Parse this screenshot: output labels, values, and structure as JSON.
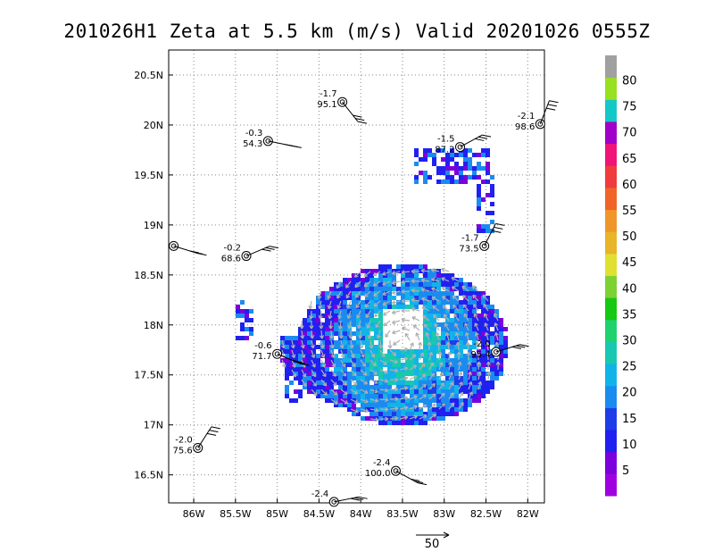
{
  "chart_data": {
    "type": "heatmap",
    "title": "201026H1  Zeta at 5.5 km (m/s) Valid 20201026  0555Z",
    "x_axis": {
      "range": [
        -86.3,
        -81.8
      ],
      "ticks": [
        -86,
        -85.5,
        -85,
        -84.5,
        -84,
        -83.5,
        -83,
        -82.5,
        -82
      ],
      "tick_labels": [
        "86W",
        "85.5W",
        "85W",
        "84.5W",
        "84W",
        "83.5W",
        "83W",
        "82.5W",
        "82W"
      ]
    },
    "y_axis": {
      "range": [
        16.22,
        20.75
      ],
      "ticks": [
        16.5,
        17,
        17.5,
        18,
        18.5,
        19,
        19.5,
        20,
        20.5
      ],
      "tick_labels": [
        "16.5N",
        "17N",
        "17.5N",
        "18N",
        "18.5N",
        "19N",
        "19.5N",
        "20N",
        "20.5N"
      ]
    },
    "grid": true,
    "colorbar": {
      "levels": [
        5,
        10,
        15,
        20,
        25,
        30,
        35,
        40,
        45,
        50,
        55,
        60,
        65,
        70,
        75,
        80
      ],
      "labels": [
        "5",
        "10",
        "15",
        "20",
        "25",
        "30",
        "35",
        "40",
        "45",
        "50",
        "55",
        "60",
        "65",
        "70",
        "75",
        "80"
      ],
      "colors": [
        "#a000e0",
        "#7a00dc",
        "#2020f0",
        "#1e3ce8",
        "#1a8cf0",
        "#10b4e8",
        "#18c8b0",
        "#1ed26e",
        "#14c814",
        "#7cd232",
        "#e0e030",
        "#e8b428",
        "#f09628",
        "#f06428",
        "#f03c3c",
        "#f01478",
        "#a000c8",
        "#14c8c8",
        "#98e020",
        "#a0a0a0"
      ]
    },
    "vector_reference": {
      "label": "50"
    },
    "observations": [
      {
        "lon": -84.22,
        "lat": 20.23,
        "top": "-1.7",
        "bottom": "95.1"
      },
      {
        "lon": -85.11,
        "lat": 19.84,
        "top": "-0.3",
        "bottom": "54.3"
      },
      {
        "lon": -82.81,
        "lat": 19.78,
        "top": "-1.5",
        "bottom": "87.2"
      },
      {
        "lon": -81.85,
        "lat": 20.01,
        "top": "-2.1",
        "bottom": "98.6"
      },
      {
        "lon": -86.24,
        "lat": 18.79,
        "top": "",
        "bottom": ""
      },
      {
        "lon": -85.37,
        "lat": 18.69,
        "top": "-0.2",
        "bottom": "68.6"
      },
      {
        "lon": -82.52,
        "lat": 18.79,
        "top": "-1.7",
        "bottom": "73.5"
      },
      {
        "lon": -85.0,
        "lat": 17.71,
        "top": "-0.6",
        "bottom": "71.7"
      },
      {
        "lon": -82.38,
        "lat": 17.73,
        "top": "-2.0",
        "bottom": "95.4"
      },
      {
        "lon": -85.95,
        "lat": 16.77,
        "top": "-2.0",
        "bottom": "75.6"
      },
      {
        "lon": -83.58,
        "lat": 16.54,
        "top": "-2.4",
        "bottom": "100.0"
      },
      {
        "lon": -84.32,
        "lat": 16.23,
        "top": "-2.4",
        "bottom": ""
      }
    ]
  }
}
